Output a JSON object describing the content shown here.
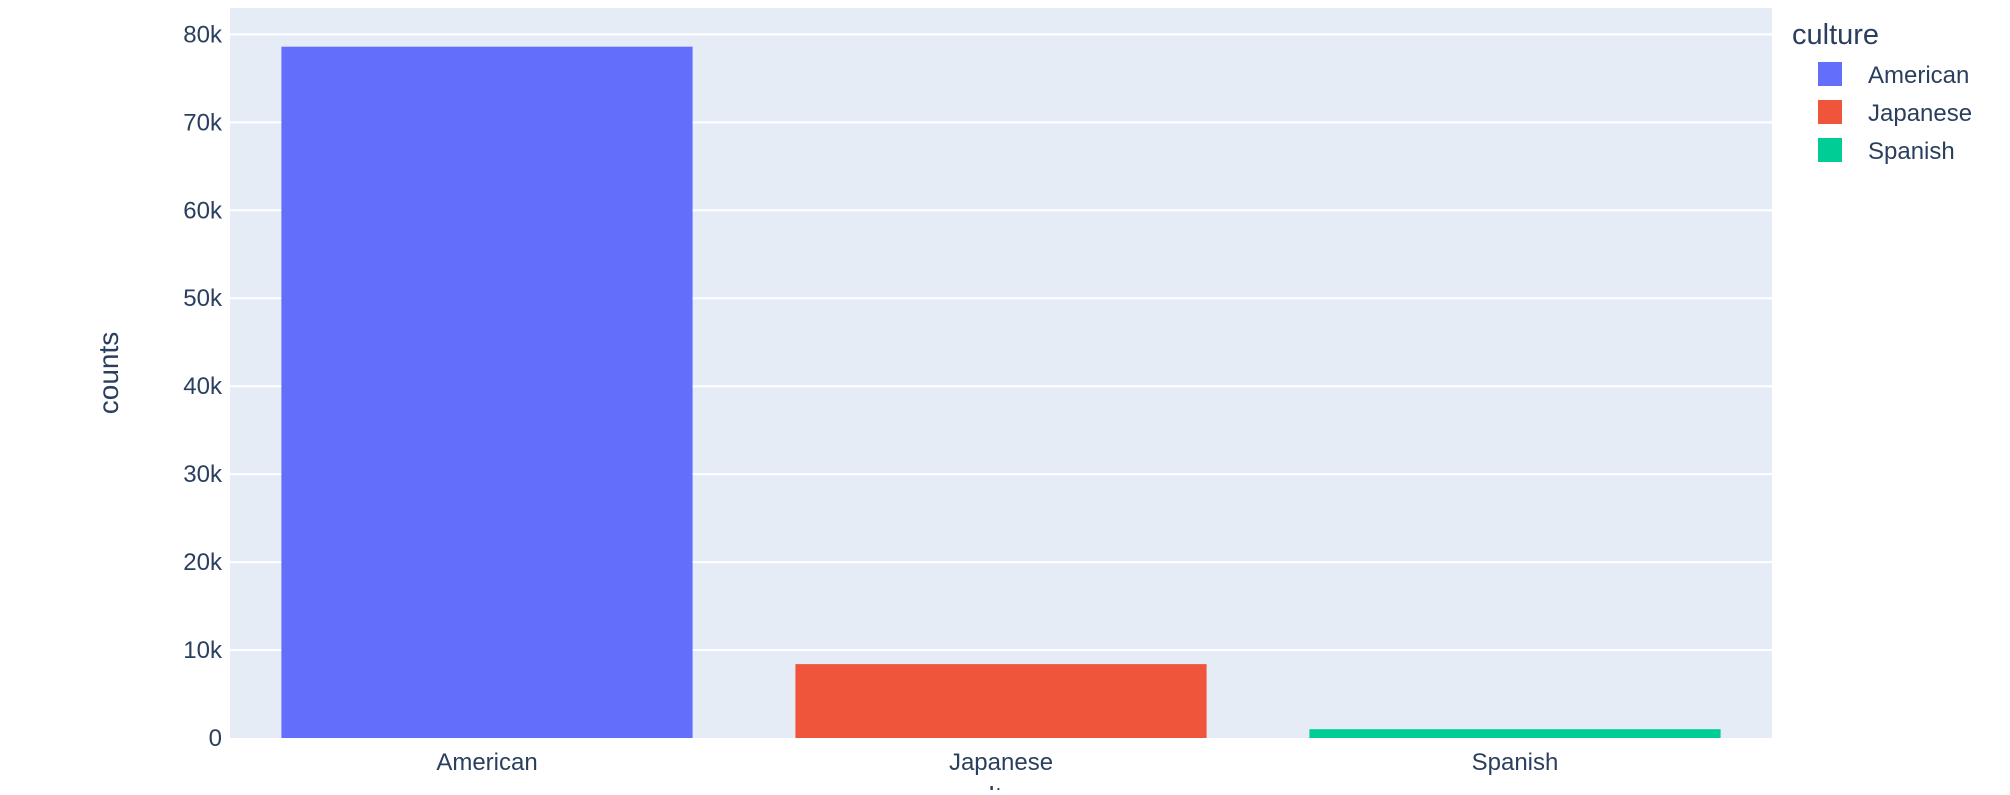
{
  "chart_data": {
    "type": "bar",
    "categories": [
      "American",
      "Japanese",
      "Spanish"
    ],
    "values": [
      78600,
      8400,
      1000
    ],
    "colors": [
      "#636efa",
      "#ef553b",
      "#00cc96"
    ],
    "xlabel": "culture",
    "ylabel": "counts",
    "ylim": [
      0,
      83000
    ],
    "yticks": [
      0,
      10000,
      20000,
      30000,
      40000,
      50000,
      60000,
      70000,
      80000
    ],
    "ytick_labels": [
      "0",
      "10k",
      "20k",
      "30k",
      "40k",
      "50k",
      "60k",
      "70k",
      "80k"
    ],
    "grid": true,
    "plot_background": "#e5ecf6",
    "legend": {
      "title": "culture",
      "position": "top-right",
      "entries": [
        "American",
        "Japanese",
        "Spanish"
      ]
    }
  }
}
